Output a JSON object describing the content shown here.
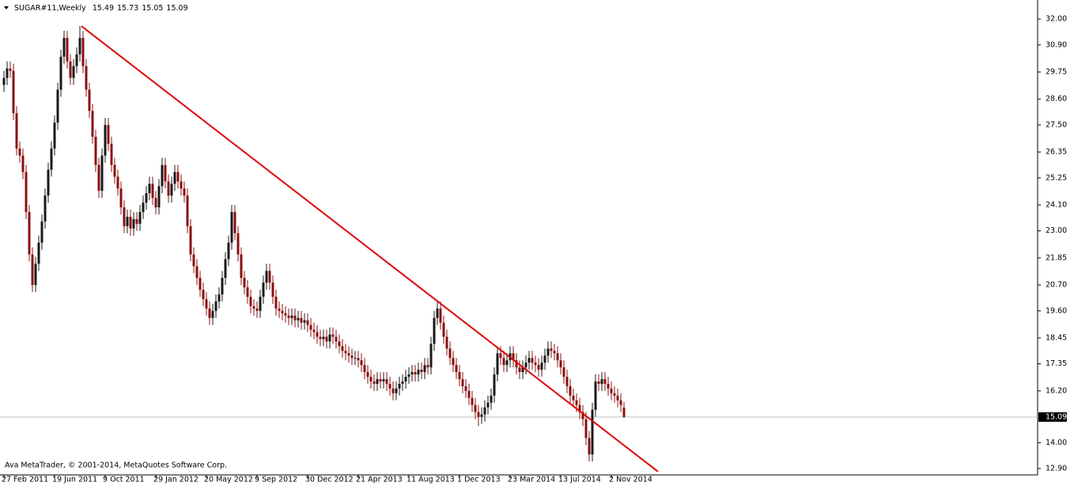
{
  "chart_data": {
    "type": "candlestick",
    "title": "SUGAR#11,Weekly",
    "footer": "Ava MetaTrader, © 2001-2014, MetaQuotes Software Corp.",
    "up_color": "#1a1a1a",
    "down_color": "#8b1010",
    "ylim": [
      12.63,
      32.81
    ],
    "yticks": [
      {
        "value": 32,
        "label": "32.00"
      },
      {
        "value": 30.9,
        "label": "30.90"
      },
      {
        "value": 29.75,
        "label": "29.75"
      },
      {
        "value": 28.6,
        "label": "28.60"
      },
      {
        "value": 27.5,
        "label": "27.50"
      },
      {
        "value": 26.35,
        "label": "26.35"
      },
      {
        "value": 25.25,
        "label": "25.25"
      },
      {
        "value": 24.1,
        "label": "24.10"
      },
      {
        "value": 23,
        "label": "23.00"
      },
      {
        "value": 21.85,
        "label": "21.85"
      },
      {
        "value": 20.7,
        "label": "20.70"
      },
      {
        "value": 19.6,
        "label": "19.60"
      },
      {
        "value": 18.45,
        "label": "18.45"
      },
      {
        "value": 17.35,
        "label": "17.35"
      },
      {
        "value": 16.2,
        "label": "16.20"
      },
      {
        "value": 14,
        "label": "14.00"
      },
      {
        "value": 12.9,
        "label": "12.90"
      }
    ],
    "trendline": {
      "x": [
        24.5,
        206.75
      ],
      "y": [
        31.7,
        12.77
      ],
      "color": "#e00000"
    },
    "categories": [
      "27 Feb 2011",
      null,
      null,
      null,
      null,
      null,
      null,
      null,
      null,
      null,
      null,
      null,
      null,
      null,
      null,
      null,
      "19 Jun 2011",
      null,
      null,
      null,
      null,
      null,
      null,
      null,
      null,
      null,
      null,
      null,
      null,
      null,
      null,
      null,
      "9 Oct 2011",
      null,
      null,
      null,
      null,
      null,
      null,
      null,
      null,
      null,
      null,
      null,
      null,
      null,
      null,
      null,
      "29 Jan 2012",
      null,
      null,
      null,
      null,
      null,
      null,
      null,
      null,
      null,
      null,
      null,
      null,
      null,
      null,
      null,
      "20 May 2012",
      null,
      null,
      null,
      null,
      null,
      null,
      null,
      null,
      null,
      null,
      null,
      null,
      null,
      null,
      null,
      "9 Sep 2012",
      null,
      null,
      null,
      null,
      null,
      null,
      null,
      null,
      null,
      null,
      null,
      null,
      null,
      null,
      null,
      "30 Dec 2012",
      null,
      null,
      null,
      null,
      null,
      null,
      null,
      null,
      null,
      null,
      null,
      null,
      null,
      null,
      null,
      "21 Apr 2013",
      null,
      null,
      null,
      null,
      null,
      null,
      null,
      null,
      null,
      null,
      null,
      null,
      null,
      null,
      null,
      "11 Aug 2013",
      null,
      null,
      null,
      null,
      null,
      null,
      null,
      null,
      null,
      null,
      null,
      null,
      null,
      null,
      null,
      "1 Dec 2013",
      null,
      null,
      null,
      null,
      null,
      null,
      null,
      null,
      null,
      null,
      null,
      null,
      null,
      null,
      null,
      "23 Mar 2014",
      null,
      null,
      null,
      null,
      null,
      null,
      null,
      null,
      null,
      null,
      null,
      null,
      null,
      null,
      null,
      "13 Jul 2014",
      null,
      null,
      null,
      null,
      null,
      null,
      null,
      null,
      null,
      null,
      null,
      null,
      null,
      null,
      null,
      "2 Nov 2014",
      null,
      null,
      null,
      null
    ],
    "candles": [
      [
        29.2,
        29.8,
        28.9,
        29.5
      ],
      [
        29.5,
        30.2,
        29.2,
        29.9
      ],
      [
        29.9,
        30.2,
        29.5,
        29.8
      ],
      [
        29.8,
        30.1,
        27.7,
        28.0
      ],
      [
        28.0,
        28.3,
        26.2,
        26.5
      ],
      [
        26.5,
        26.8,
        25.9,
        26.2
      ],
      [
        26.2,
        26.5,
        25.2,
        25.5
      ],
      [
        25.5,
        25.8,
        23.5,
        23.8
      ],
      [
        23.8,
        24.1,
        21.7,
        22.0
      ],
      [
        22.0,
        22.3,
        20.4,
        20.7
      ],
      [
        20.7,
        21.9,
        20.4,
        21.6
      ],
      [
        21.6,
        22.8,
        21.3,
        22.5
      ],
      [
        22.5,
        23.7,
        22.2,
        23.4
      ],
      [
        23.4,
        24.8,
        23.1,
        24.5
      ],
      [
        24.5,
        25.9,
        24.2,
        25.6
      ],
      [
        25.6,
        26.8,
        25.3,
        26.5
      ],
      [
        26.5,
        27.9,
        26.2,
        27.6
      ],
      [
        27.6,
        29.3,
        27.3,
        29.0
      ],
      [
        29.0,
        30.7,
        28.7,
        30.4
      ],
      [
        30.4,
        31.5,
        30.1,
        31.2
      ],
      [
        31.2,
        31.5,
        29.9,
        30.2
      ],
      [
        30.2,
        30.5,
        29.2,
        29.5
      ],
      [
        29.5,
        30.3,
        29.2,
        30.0
      ],
      [
        30.0,
        30.8,
        29.7,
        30.5
      ],
      [
        30.5,
        31.7,
        30.2,
        31.2
      ],
      [
        31.2,
        31.5,
        29.7,
        30.0
      ],
      [
        30.0,
        30.3,
        28.7,
        29.0
      ],
      [
        29.0,
        29.3,
        27.8,
        28.1
      ],
      [
        28.1,
        28.4,
        26.7,
        27.0
      ],
      [
        27.0,
        27.3,
        25.5,
        25.8
      ],
      [
        25.8,
        26.1,
        24.4,
        24.7
      ],
      [
        24.7,
        26.5,
        24.4,
        26.2
      ],
      [
        26.2,
        27.8,
        25.9,
        27.5
      ],
      [
        27.5,
        27.8,
        26.4,
        26.7
      ],
      [
        26.7,
        27.0,
        25.5,
        25.8
      ],
      [
        25.8,
        26.1,
        25.0,
        25.3
      ],
      [
        25.3,
        25.6,
        24.5,
        24.8
      ],
      [
        24.8,
        25.1,
        23.7,
        24.0
      ],
      [
        24.0,
        24.3,
        22.9,
        23.2
      ],
      [
        23.2,
        23.9,
        22.9,
        23.6
      ],
      [
        23.6,
        23.9,
        22.8,
        23.1
      ],
      [
        23.1,
        23.8,
        22.8,
        23.5
      ],
      [
        23.5,
        23.8,
        23.0,
        23.3
      ],
      [
        23.3,
        24.1,
        23.0,
        23.8
      ],
      [
        23.8,
        24.5,
        23.5,
        24.2
      ],
      [
        24.2,
        24.9,
        23.9,
        24.6
      ],
      [
        24.6,
        25.3,
        24.3,
        25.0
      ],
      [
        25.0,
        25.3,
        24.1,
        24.4
      ],
      [
        24.4,
        24.7,
        23.7,
        24.0
      ],
      [
        24.0,
        25.2,
        23.7,
        24.9
      ],
      [
        24.9,
        26.1,
        24.6,
        25.8
      ],
      [
        25.8,
        26.1,
        24.8,
        25.1
      ],
      [
        25.1,
        25.4,
        24.2,
        24.5
      ],
      [
        24.5,
        25.3,
        24.2,
        25.0
      ],
      [
        25.0,
        25.8,
        24.7,
        25.5
      ],
      [
        25.5,
        25.8,
        24.8,
        25.1
      ],
      [
        25.1,
        25.4,
        24.5,
        24.8
      ],
      [
        24.8,
        25.1,
        24.2,
        24.5
      ],
      [
        24.5,
        24.8,
        22.9,
        23.2
      ],
      [
        23.2,
        23.5,
        21.7,
        22.0
      ],
      [
        22.0,
        22.3,
        21.2,
        21.5
      ],
      [
        21.5,
        21.8,
        20.7,
        21.0
      ],
      [
        21.0,
        21.3,
        20.2,
        20.5
      ],
      [
        20.5,
        20.8,
        19.8,
        20.1
      ],
      [
        20.1,
        20.4,
        19.4,
        19.7
      ],
      [
        19.7,
        20.0,
        19.0,
        19.3
      ],
      [
        19.3,
        19.9,
        19.0,
        19.6
      ],
      [
        19.6,
        20.3,
        19.3,
        20.0
      ],
      [
        20.0,
        20.6,
        19.7,
        20.3
      ],
      [
        20.3,
        21.3,
        20.0,
        21.0
      ],
      [
        21.0,
        22.1,
        20.7,
        21.8
      ],
      [
        21.8,
        22.8,
        21.5,
        22.5
      ],
      [
        22.5,
        24.1,
        22.2,
        23.8
      ],
      [
        23.8,
        24.1,
        22.6,
        22.9
      ],
      [
        22.9,
        23.2,
        21.7,
        22.0
      ],
      [
        22.0,
        22.3,
        20.7,
        21.0
      ],
      [
        21.0,
        21.3,
        20.3,
        20.6
      ],
      [
        20.6,
        20.9,
        19.9,
        20.2
      ],
      [
        20.2,
        20.5,
        19.5,
        19.8
      ],
      [
        19.8,
        20.1,
        19.4,
        19.7
      ],
      [
        19.7,
        20.0,
        19.3,
        19.6
      ],
      [
        19.6,
        20.5,
        19.3,
        20.2
      ],
      [
        20.2,
        21.1,
        19.9,
        20.8
      ],
      [
        20.8,
        21.6,
        20.5,
        21.3
      ],
      [
        21.3,
        21.6,
        20.5,
        20.8
      ],
      [
        20.8,
        21.1,
        19.9,
        20.2
      ],
      [
        20.2,
        20.5,
        19.4,
        19.7
      ],
      [
        19.7,
        20.0,
        19.3,
        19.6
      ],
      [
        19.6,
        19.9,
        19.2,
        19.5
      ],
      [
        19.5,
        19.8,
        19.1,
        19.4
      ],
      [
        19.4,
        19.7,
        19.0,
        19.3
      ],
      [
        19.3,
        19.7,
        19.0,
        19.4
      ],
      [
        19.4,
        19.7,
        18.9,
        19.2
      ],
      [
        19.2,
        19.6,
        18.9,
        19.3
      ],
      [
        19.3,
        19.6,
        18.8,
        19.1
      ],
      [
        19.1,
        19.5,
        18.8,
        19.2
      ],
      [
        19.2,
        19.5,
        18.7,
        19.0
      ],
      [
        19.0,
        19.3,
        18.5,
        18.8
      ],
      [
        18.8,
        19.1,
        18.4,
        18.7
      ],
      [
        18.7,
        19.0,
        18.2,
        18.5
      ],
      [
        18.5,
        18.8,
        18.1,
        18.4
      ],
      [
        18.4,
        18.8,
        18.1,
        18.5
      ],
      [
        18.5,
        18.8,
        18.0,
        18.3
      ],
      [
        18.3,
        18.9,
        18.0,
        18.6
      ],
      [
        18.6,
        18.9,
        18.2,
        18.5
      ],
      [
        18.5,
        18.8,
        18.0,
        18.3
      ],
      [
        18.3,
        18.6,
        17.8,
        18.1
      ],
      [
        18.1,
        18.4,
        17.6,
        17.9
      ],
      [
        17.9,
        18.2,
        17.5,
        17.8
      ],
      [
        17.8,
        18.1,
        17.4,
        17.7
      ],
      [
        17.7,
        18.0,
        17.3,
        17.6
      ],
      [
        17.6,
        17.9,
        17.3,
        17.6
      ],
      [
        17.6,
        17.9,
        17.2,
        17.5
      ],
      [
        17.5,
        17.8,
        17.0,
        17.3
      ],
      [
        17.3,
        17.6,
        16.7,
        17.0
      ],
      [
        17.0,
        17.3,
        16.5,
        16.8
      ],
      [
        16.8,
        17.1,
        16.3,
        16.6
      ],
      [
        16.6,
        16.9,
        16.2,
        16.5
      ],
      [
        16.5,
        17.0,
        16.2,
        16.7
      ],
      [
        16.7,
        17.0,
        16.3,
        16.6
      ],
      [
        16.6,
        17.0,
        16.3,
        16.7
      ],
      [
        16.7,
        17.0,
        16.2,
        16.5
      ],
      [
        16.5,
        16.8,
        16.0,
        16.3
      ],
      [
        16.3,
        16.6,
        15.8,
        16.1
      ],
      [
        16.1,
        16.6,
        15.8,
        16.3
      ],
      [
        16.3,
        16.8,
        16.0,
        16.5
      ],
      [
        16.5,
        16.9,
        16.2,
        16.6
      ],
      [
        16.6,
        17.1,
        16.3,
        16.8
      ],
      [
        16.8,
        17.2,
        16.5,
        16.9
      ],
      [
        16.9,
        17.3,
        16.6,
        17.0
      ],
      [
        17.0,
        17.3,
        16.6,
        16.9
      ],
      [
        16.9,
        17.4,
        16.6,
        17.1
      ],
      [
        17.1,
        17.4,
        16.7,
        17.0
      ],
      [
        17.0,
        17.6,
        16.7,
        17.3
      ],
      [
        17.3,
        17.6,
        16.9,
        17.2
      ],
      [
        17.2,
        18.5,
        16.9,
        18.2
      ],
      [
        18.2,
        19.6,
        17.9,
        19.3
      ],
      [
        19.3,
        20.0,
        19.0,
        19.7
      ],
      [
        19.7,
        20.0,
        18.8,
        19.1
      ],
      [
        19.1,
        19.4,
        18.2,
        18.5
      ],
      [
        18.5,
        18.8,
        17.7,
        18.0
      ],
      [
        18.0,
        18.3,
        17.3,
        17.6
      ],
      [
        17.6,
        17.9,
        17.0,
        17.3
      ],
      [
        17.3,
        17.6,
        16.7,
        17.0
      ],
      [
        17.0,
        17.3,
        16.4,
        16.7
      ],
      [
        16.7,
        17.0,
        16.1,
        16.4
      ],
      [
        16.4,
        16.7,
        15.9,
        16.2
      ],
      [
        16.2,
        16.5,
        15.6,
        15.9
      ],
      [
        15.9,
        16.2,
        15.3,
        15.6
      ],
      [
        15.6,
        15.9,
        15.0,
        15.3
      ],
      [
        15.3,
        15.6,
        14.7,
        15.1
      ],
      [
        15.1,
        15.5,
        14.8,
        15.2
      ],
      [
        15.2,
        15.8,
        14.9,
        15.5
      ],
      [
        15.5,
        16.0,
        15.2,
        15.7
      ],
      [
        15.7,
        16.3,
        15.4,
        16.0
      ],
      [
        16.0,
        17.2,
        15.7,
        16.9
      ],
      [
        16.9,
        18.1,
        16.6,
        17.8
      ],
      [
        17.8,
        18.1,
        17.3,
        17.6
      ],
      [
        17.6,
        17.9,
        17.0,
        17.3
      ],
      [
        17.3,
        17.8,
        17.0,
        17.5
      ],
      [
        17.5,
        18.1,
        17.2,
        17.8
      ],
      [
        17.8,
        18.1,
        17.2,
        17.5
      ],
      [
        17.5,
        17.8,
        16.9,
        17.2
      ],
      [
        17.2,
        17.5,
        16.7,
        17.0
      ],
      [
        17.0,
        17.5,
        16.7,
        17.2
      ],
      [
        17.2,
        17.7,
        16.9,
        17.4
      ],
      [
        17.4,
        17.9,
        17.1,
        17.6
      ],
      [
        17.6,
        17.9,
        17.1,
        17.4
      ],
      [
        17.4,
        17.7,
        17.0,
        17.3
      ],
      [
        17.3,
        17.6,
        16.8,
        17.1
      ],
      [
        17.1,
        17.7,
        16.8,
        17.4
      ],
      [
        17.4,
        18.0,
        17.1,
        17.7
      ],
      [
        17.7,
        18.3,
        17.4,
        18.0
      ],
      [
        18.0,
        18.3,
        17.6,
        17.9
      ],
      [
        17.9,
        18.2,
        17.5,
        17.8
      ],
      [
        17.8,
        18.1,
        17.2,
        17.5
      ],
      [
        17.5,
        17.8,
        16.9,
        17.2
      ],
      [
        17.2,
        17.5,
        16.5,
        16.8
      ],
      [
        16.8,
        17.1,
        16.1,
        16.4
      ],
      [
        16.4,
        16.7,
        15.7,
        16.0
      ],
      [
        16.0,
        16.3,
        15.5,
        15.8
      ],
      [
        15.8,
        16.1,
        15.3,
        15.6
      ],
      [
        15.6,
        15.9,
        15.0,
        15.3
      ],
      [
        15.3,
        15.6,
        14.7,
        15.0
      ],
      [
        15.0,
        15.3,
        13.9,
        14.2
      ],
      [
        14.2,
        14.5,
        13.2,
        13.5
      ],
      [
        13.5,
        15.7,
        13.2,
        15.4
      ],
      [
        15.4,
        16.9,
        15.1,
        16.6
      ],
      [
        16.6,
        16.9,
        16.2,
        16.5
      ],
      [
        16.5,
        17.0,
        16.2,
        16.7
      ],
      [
        16.7,
        17.0,
        16.2,
        16.5
      ],
      [
        16.5,
        16.8,
        16.0,
        16.3
      ],
      [
        16.3,
        16.6,
        15.8,
        16.1
      ],
      [
        16.1,
        16.4,
        15.7,
        16.0
      ],
      [
        16.0,
        16.3,
        15.5,
        15.8
      ],
      [
        15.8,
        16.1,
        15.3,
        15.6
      ],
      [
        15.49,
        15.73,
        15.05,
        15.09
      ]
    ]
  }
}
